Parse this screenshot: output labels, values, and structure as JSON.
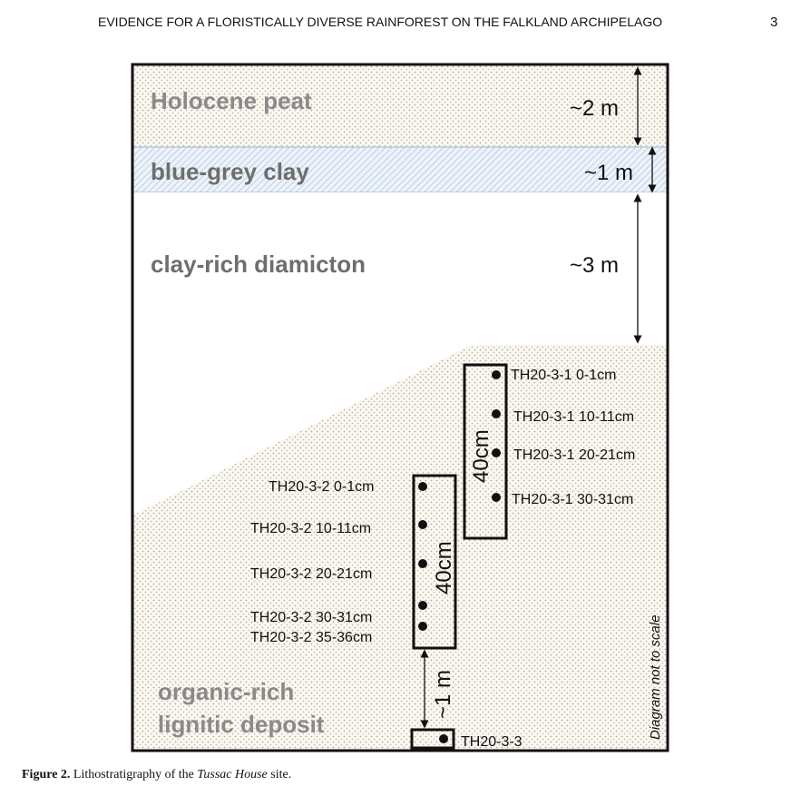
{
  "header": {
    "title": "EVIDENCE FOR A FLORISTICALLY DIVERSE RAINFOREST ON THE FALKLAND ARCHIPELAGO",
    "page_number": "3"
  },
  "figure": {
    "layers": {
      "peat": "Holocene peat",
      "clay": "blue-grey clay",
      "diamicton": "clay-rich diamicton",
      "organic_line1": "organic-rich",
      "organic_line2": "lignitic deposit"
    },
    "thickness": {
      "peat": "~2 m",
      "clay": "~1 m",
      "diamicton": "~3 m",
      "gap": "~1 m"
    },
    "core_length": "40cm",
    "samples_core1": [
      "TH20-3-1 0-1cm",
      "TH20-3-1 10-11cm",
      "TH20-3-1 20-21cm",
      "TH20-3-1 30-31cm"
    ],
    "samples_core2": [
      "TH20-3-2 0-1cm",
      "TH20-3-2 10-11cm",
      "TH20-3-2 20-21cm",
      "TH20-3-2 30-31cm",
      "TH20-3-2 35-36cm"
    ],
    "sample_core3": "TH20-3-3",
    "scale_note": "Diagram not to scale",
    "colors": {
      "stipple": "#b9a98f",
      "clay_hatch": "#b8cbe2",
      "frame": "#111111",
      "layer_text": "#8a8a8a"
    }
  },
  "caption": {
    "label": "Figure 2.",
    "text_before": " Lithostratigraphy of the ",
    "site": "Tussac House",
    "text_after": " site."
  }
}
